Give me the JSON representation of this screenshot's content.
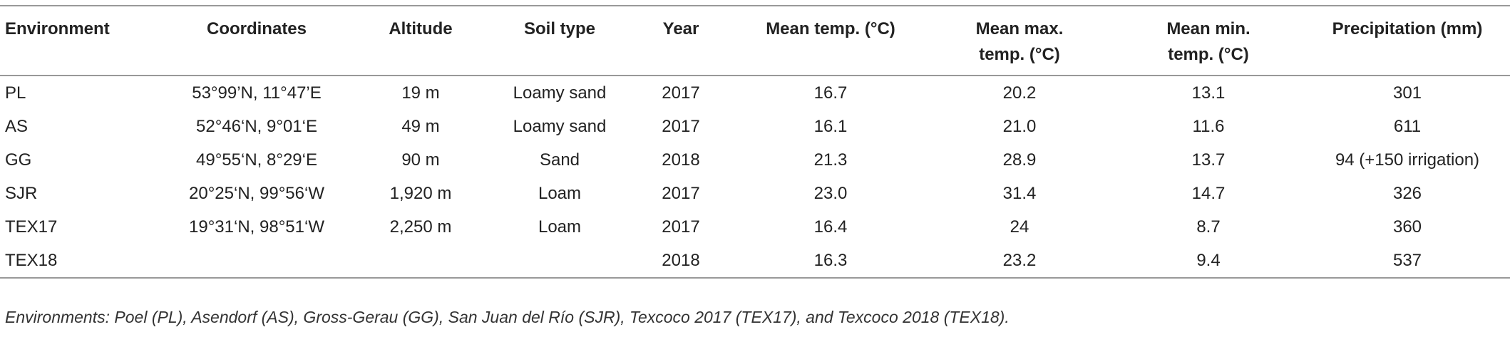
{
  "table": {
    "headers": [
      "Environment",
      "Coordinates",
      "Altitude",
      "Soil type",
      "Year",
      "Mean temp. (°C)",
      "Mean max. temp. (°C)",
      "Mean min. temp. (°C)",
      "Precipitation (mm)"
    ],
    "rows": [
      [
        "PL",
        "53°99’N, 11°47’E",
        "19 m",
        "Loamy sand",
        "2017",
        "16.7",
        "20.2",
        "13.1",
        "301"
      ],
      [
        "AS",
        "52°46‘N, 9°01‘E",
        "49 m",
        "Loamy sand",
        "2017",
        "16.1",
        "21.0",
        "11.6",
        "611"
      ],
      [
        "GG",
        "49°55‘N, 8°29‘E",
        "90 m",
        "Sand",
        "2018",
        "21.3",
        "28.9",
        "13.7",
        "94 (+150 irrigation)"
      ],
      [
        "SJR",
        "20°25‘N, 99°56‘W",
        "1,920 m",
        "Loam",
        "2017",
        "23.0",
        "31.4",
        "14.7",
        "326"
      ],
      [
        "TEX17",
        "19°31‘N, 98°51‘W",
        "2,250 m",
        "Loam",
        "2017",
        "16.4",
        "24",
        "8.7",
        "360"
      ],
      [
        "TEX18",
        null,
        null,
        null,
        "2018",
        "16.3",
        "23.2",
        "9.4",
        "537"
      ]
    ],
    "footnote": "Environments: Poel (PL), Asendorf (AS), Gross-Gerau (GG), San Juan del Río (SJR), Texcoco 2017 (TEX17), and Texcoco 2018 (TEX18)."
  }
}
